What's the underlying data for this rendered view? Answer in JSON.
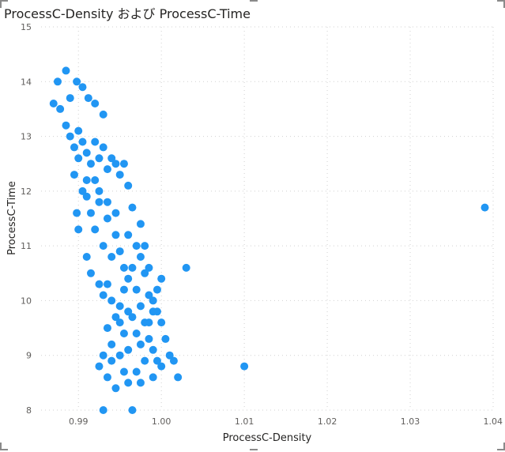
{
  "chart_data": {
    "type": "scatter",
    "title": "ProcessC-Density および ProcessC-Time",
    "xlabel": "ProcessC-Density",
    "ylabel": "ProcessC-Time",
    "xlim": [
      0.9855,
      1.04
    ],
    "ylim": [
      8,
      15
    ],
    "x_ticks": [
      "0.99",
      "1.00",
      "1.01",
      "1.02",
      "1.03",
      "1.04"
    ],
    "x_tick_values": [
      0.99,
      1.0,
      1.01,
      1.02,
      1.03,
      1.04
    ],
    "y_ticks": [
      "8",
      "9",
      "10",
      "11",
      "12",
      "13",
      "14",
      "15"
    ],
    "y_tick_values": [
      8,
      9,
      10,
      11,
      12,
      13,
      14,
      15
    ],
    "grid": true,
    "point_color": "#2196f3",
    "series": [
      {
        "points": [
          [
            0.9875,
            14.0
          ],
          [
            0.9885,
            14.2
          ],
          [
            0.987,
            13.6
          ],
          [
            0.9878,
            13.5
          ],
          [
            0.989,
            13.7
          ],
          [
            0.9898,
            14.0
          ],
          [
            0.9905,
            13.9
          ],
          [
            0.9912,
            13.7
          ],
          [
            0.992,
            13.6
          ],
          [
            0.993,
            13.4
          ],
          [
            0.9885,
            13.2
          ],
          [
            0.989,
            13.0
          ],
          [
            0.9895,
            12.8
          ],
          [
            0.99,
            13.1
          ],
          [
            0.9905,
            12.9
          ],
          [
            0.991,
            12.7
          ],
          [
            0.9915,
            12.5
          ],
          [
            0.992,
            12.9
          ],
          [
            0.9925,
            12.6
          ],
          [
            0.993,
            12.8
          ],
          [
            0.9935,
            12.4
          ],
          [
            0.994,
            12.6
          ],
          [
            0.9945,
            12.5
          ],
          [
            0.995,
            12.3
          ],
          [
            0.9955,
            12.5
          ],
          [
            0.996,
            12.1
          ],
          [
            0.9965,
            11.7
          ],
          [
            0.996,
            11.2
          ],
          [
            0.997,
            11.0
          ],
          [
            0.9975,
            10.8
          ],
          [
            0.998,
            10.5
          ],
          [
            0.9985,
            10.1
          ],
          [
            0.999,
            10.0
          ],
          [
            0.9995,
            9.8
          ],
          [
            1.0,
            9.6
          ],
          [
            1.0005,
            9.3
          ],
          [
            1.001,
            9.0
          ],
          [
            1.0015,
            8.9
          ],
          [
            1.002,
            8.6
          ],
          [
            0.999,
            8.6
          ],
          [
            0.9975,
            8.5
          ],
          [
            0.996,
            8.5
          ],
          [
            0.9945,
            8.4
          ],
          [
            0.993,
            8.0
          ],
          [
            0.9965,
            8.0
          ],
          [
            0.9935,
            8.6
          ],
          [
            0.9925,
            8.8
          ],
          [
            0.993,
            9.0
          ],
          [
            0.994,
            9.2
          ],
          [
            0.9935,
            9.5
          ],
          [
            0.9945,
            9.7
          ],
          [
            0.995,
            9.9
          ],
          [
            0.9955,
            10.2
          ],
          [
            0.996,
            10.4
          ],
          [
            0.9965,
            10.6
          ],
          [
            0.994,
            10.8
          ],
          [
            0.993,
            11.0
          ],
          [
            0.992,
            11.3
          ],
          [
            0.9915,
            11.6
          ],
          [
            0.991,
            11.9
          ],
          [
            0.9895,
            12.3
          ],
          [
            0.99,
            12.6
          ],
          [
            0.9925,
            11.8
          ],
          [
            0.9935,
            11.5
          ],
          [
            0.9945,
            11.2
          ],
          [
            0.995,
            10.9
          ],
          [
            0.9955,
            10.6
          ],
          [
            0.997,
            10.2
          ],
          [
            0.9975,
            9.9
          ],
          [
            0.998,
            9.6
          ],
          [
            0.9985,
            9.3
          ],
          [
            0.999,
            9.1
          ],
          [
            0.9995,
            8.9
          ],
          [
            1.0,
            8.8
          ],
          [
            0.996,
            9.1
          ],
          [
            0.9955,
            9.4
          ],
          [
            0.9965,
            9.7
          ],
          [
            0.997,
            9.4
          ],
          [
            0.9975,
            9.2
          ],
          [
            0.995,
            9.0
          ],
          [
            0.994,
            8.9
          ],
          [
            0.998,
            8.9
          ],
          [
            0.9985,
            9.6
          ],
          [
            0.999,
            9.8
          ],
          [
            0.9995,
            10.2
          ],
          [
            1.0,
            10.4
          ],
          [
            0.9985,
            10.6
          ],
          [
            0.998,
            11.0
          ],
          [
            0.9975,
            11.4
          ],
          [
            0.991,
            12.2
          ],
          [
            0.9905,
            12.0
          ],
          [
            0.992,
            12.2
          ],
          [
            0.9925,
            12.0
          ],
          [
            0.9935,
            11.8
          ],
          [
            0.9945,
            11.6
          ],
          [
            0.9898,
            11.6
          ],
          [
            0.99,
            11.3
          ],
          [
            0.991,
            10.8
          ],
          [
            0.9915,
            10.5
          ],
          [
            0.9925,
            10.3
          ],
          [
            0.993,
            10.1
          ],
          [
            0.9935,
            10.3
          ],
          [
            0.994,
            10.0
          ],
          [
            0.995,
            9.6
          ],
          [
            0.996,
            9.8
          ],
          [
            0.997,
            8.7
          ],
          [
            0.9955,
            8.7
          ],
          [
            1.003,
            10.6
          ],
          [
            1.01,
            8.8
          ],
          [
            1.039,
            11.7
          ]
        ]
      }
    ]
  }
}
